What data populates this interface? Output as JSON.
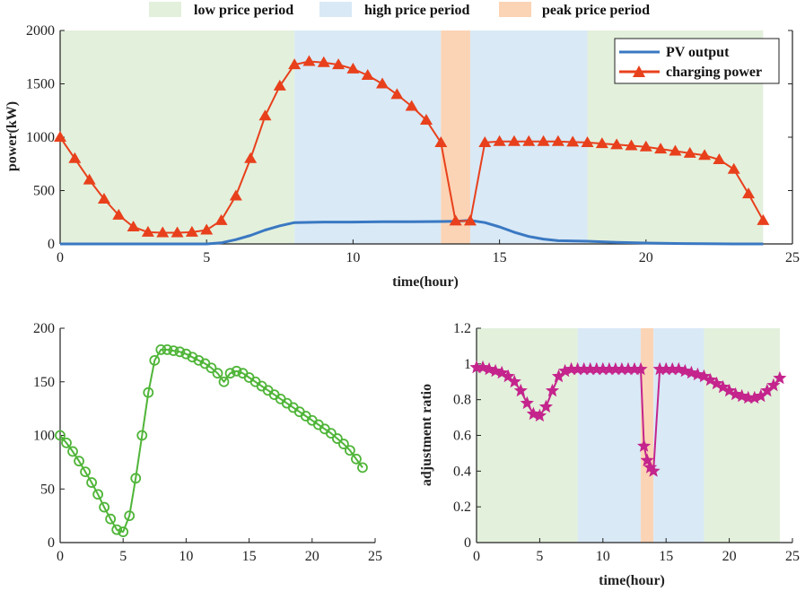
{
  "period_legend": [
    {
      "label": "low price period",
      "color": "#e3f0dc"
    },
    {
      "label": "high price period",
      "color": "#d9e9f6"
    },
    {
      "label": "peak price period",
      "color": "#fbd4b5"
    }
  ],
  "chart_data": [
    {
      "type": "line",
      "xlabel": "time(hour)",
      "ylabel": "power(kW)",
      "xlim": [
        0,
        25
      ],
      "ylim": [
        0,
        2000
      ],
      "xticks": [
        0,
        5,
        10,
        15,
        20,
        25
      ],
      "yticks": [
        0,
        500,
        1000,
        1500,
        2000
      ],
      "legend_position": "top-right",
      "shaded_periods": [
        {
          "period": "low price period",
          "x": [
            0,
            8
          ]
        },
        {
          "period": "high price period",
          "x": [
            8,
            13
          ]
        },
        {
          "period": "peak price period",
          "x": [
            13,
            14
          ]
        },
        {
          "period": "high price period",
          "x": [
            14,
            18
          ]
        },
        {
          "period": "low price period",
          "x": [
            18,
            24
          ]
        }
      ],
      "series": [
        {
          "name": "PV output",
          "color": "#3a78c2",
          "marker": "none",
          "x": [
            0,
            5,
            5.5,
            6,
            6.5,
            7,
            7.5,
            8,
            9,
            10,
            11,
            12,
            13,
            13.5,
            14,
            14.5,
            15,
            15.5,
            16,
            16.5,
            17,
            18,
            19,
            20,
            21,
            22,
            23,
            24
          ],
          "y": [
            0,
            0,
            10,
            40,
            80,
            130,
            170,
            200,
            205,
            205,
            208,
            208,
            210,
            212,
            220,
            200,
            160,
            110,
            70,
            45,
            30,
            25,
            15,
            8,
            4,
            2,
            0,
            0
          ]
        },
        {
          "name": "charging power",
          "color": "#e8401c",
          "marker": "triangle",
          "x": [
            0,
            0.5,
            1,
            1.5,
            2,
            2.5,
            3,
            3.5,
            4,
            4.5,
            5,
            5.5,
            6,
            6.5,
            7,
            7.5,
            8,
            8.5,
            9,
            9.5,
            10,
            10.5,
            11,
            11.5,
            12,
            12.5,
            13,
            13.5,
            14,
            14.5,
            15,
            15.5,
            16,
            16.5,
            17,
            17.5,
            18,
            18.5,
            19,
            19.5,
            20,
            20.5,
            21,
            21.5,
            22,
            22.5,
            23,
            23.5,
            24
          ],
          "y": [
            1000,
            800,
            600,
            420,
            270,
            160,
            110,
            105,
            105,
            110,
            130,
            220,
            450,
            800,
            1200,
            1480,
            1680,
            1710,
            1700,
            1680,
            1640,
            1580,
            1500,
            1400,
            1290,
            1160,
            950,
            215,
            215,
            950,
            960,
            960,
            960,
            960,
            960,
            955,
            950,
            940,
            930,
            920,
            910,
            890,
            870,
            850,
            830,
            790,
            700,
            470,
            220
          ]
        }
      ]
    },
    {
      "type": "line",
      "xlabel": "",
      "ylabel": "",
      "xlim": [
        0,
        25
      ],
      "ylim": [
        0,
        200
      ],
      "xticks": [
        0,
        5,
        10,
        15,
        20,
        25
      ],
      "yticks": [
        0,
        50,
        100,
        150,
        200
      ],
      "series": [
        {
          "color": "#4fb538",
          "marker": "circle",
          "x": [
            0,
            0.5,
            1,
            1.5,
            2,
            2.5,
            3,
            3.5,
            4,
            4.5,
            5,
            5.5,
            6,
            6.5,
            7,
            7.5,
            8,
            8.5,
            9,
            9.5,
            10,
            10.5,
            11,
            11.5,
            12,
            12.5,
            13,
            13.5,
            14,
            14.5,
            15,
            15.5,
            16,
            16.5,
            17,
            17.5,
            18,
            18.5,
            19,
            19.5,
            20,
            20.5,
            21,
            21.5,
            22,
            22.5,
            23,
            23.5,
            24
          ],
          "y": [
            100,
            93,
            85,
            76,
            66,
            56,
            45,
            33,
            22,
            12,
            10,
            25,
            60,
            100,
            140,
            170,
            180,
            180,
            179,
            178,
            176,
            173,
            170,
            167,
            163,
            158,
            150,
            158,
            160,
            158,
            154,
            150,
            146,
            142,
            138,
            134,
            130,
            126,
            122,
            118,
            114,
            110,
            106,
            102,
            97,
            92,
            86,
            78,
            70
          ]
        }
      ]
    },
    {
      "type": "line",
      "xlabel": "time(hour)",
      "ylabel": "adjustment ratio",
      "xlim": [
        0,
        25
      ],
      "ylim": [
        0,
        1.2
      ],
      "xticks": [
        0,
        5,
        10,
        15,
        20,
        25
      ],
      "yticks": [
        0,
        0.2,
        0.4,
        0.6,
        0.8,
        1,
        1.2
      ],
      "shaded_periods": [
        {
          "period": "low price period",
          "x": [
            0,
            8
          ]
        },
        {
          "period": "high price period",
          "x": [
            8,
            13
          ]
        },
        {
          "period": "peak price period",
          "x": [
            13,
            14
          ]
        },
        {
          "period": "high price period",
          "x": [
            14,
            18
          ]
        },
        {
          "period": "low price period",
          "x": [
            18,
            24
          ]
        }
      ],
      "series": [
        {
          "color": "#c4248c",
          "marker": "star",
          "x": [
            0,
            0.5,
            1,
            1.5,
            2,
            2.5,
            3,
            3.5,
            4,
            4.5,
            5,
            5.5,
            6,
            6.5,
            7,
            7.5,
            8,
            8.5,
            9,
            9.5,
            10,
            10.5,
            11,
            11.5,
            12,
            12.5,
            13,
            13.25,
            13.5,
            13.75,
            14,
            14.5,
            15,
            15.5,
            16,
            16.5,
            17,
            17.5,
            18,
            18.5,
            19,
            19.5,
            20,
            20.5,
            21,
            21.5,
            22,
            22.5,
            23,
            23.5,
            24
          ],
          "y": [
            0.98,
            0.98,
            0.97,
            0.96,
            0.95,
            0.93,
            0.9,
            0.85,
            0.78,
            0.72,
            0.71,
            0.76,
            0.85,
            0.93,
            0.96,
            0.97,
            0.97,
            0.97,
            0.97,
            0.97,
            0.97,
            0.97,
            0.97,
            0.97,
            0.97,
            0.97,
            0.97,
            0.54,
            0.46,
            0.42,
            0.4,
            0.97,
            0.97,
            0.97,
            0.97,
            0.96,
            0.95,
            0.94,
            0.93,
            0.91,
            0.89,
            0.87,
            0.85,
            0.83,
            0.82,
            0.81,
            0.81,
            0.82,
            0.85,
            0.88,
            0.92
          ]
        }
      ]
    }
  ]
}
